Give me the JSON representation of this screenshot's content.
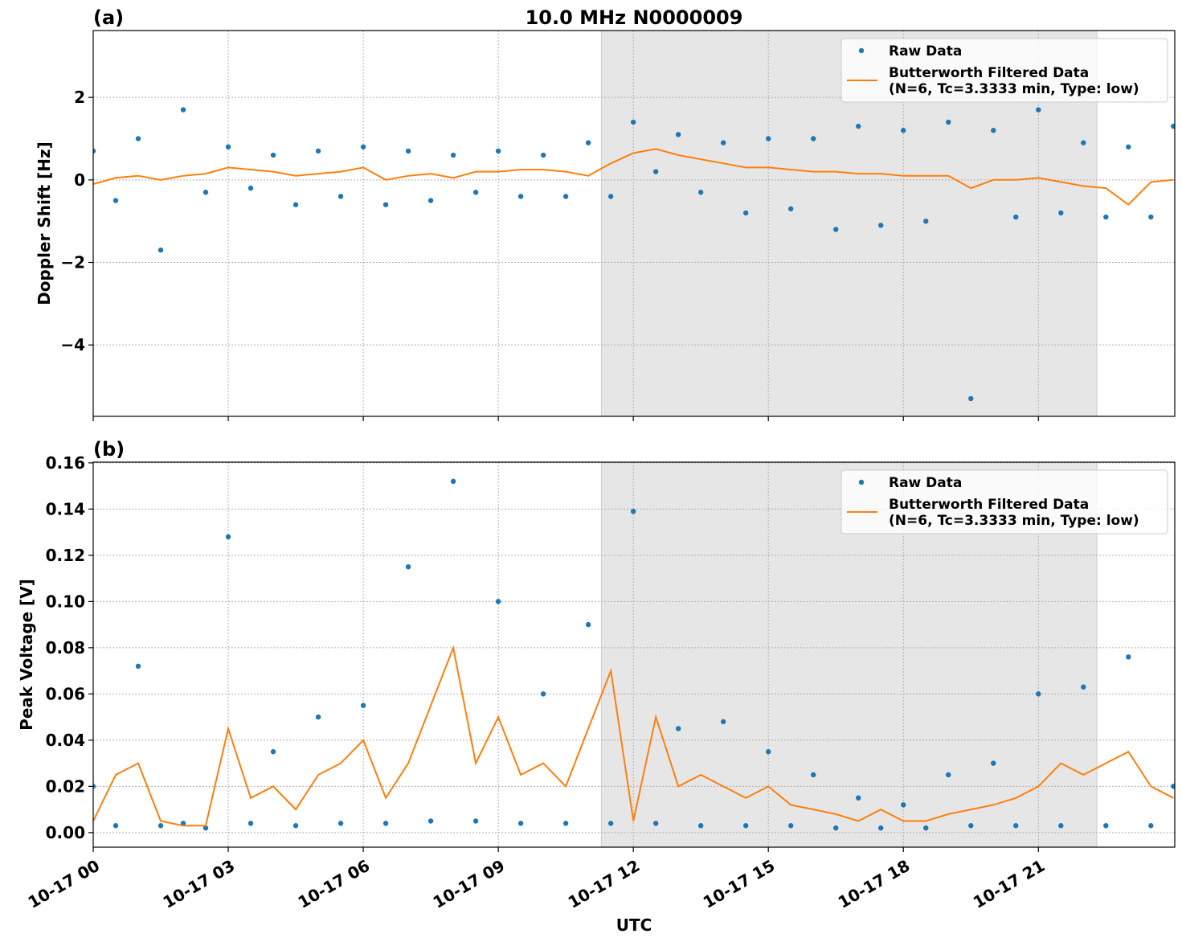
{
  "chart_data": [
    {
      "type": "line",
      "panel_label": "(a)",
      "title": "10.0 MHz N0000009",
      "ylabel": "Doppler Shift [Hz]",
      "xlim": [
        0,
        24.03
      ],
      "ylim": [
        -5.73,
        3.62
      ],
      "xticks": [
        0,
        3,
        6,
        9,
        12,
        15,
        18,
        21
      ],
      "yticks": [
        {
          "value": -4,
          "label": "−4"
        },
        {
          "value": -2,
          "label": "−2"
        },
        0,
        2
      ],
      "grid": true,
      "legend": "upper right",
      "shaded_span": [
        11.29,
        22.3
      ],
      "shade_color": "#e6e6e6",
      "series": [
        {
          "name": "Raw Data",
          "type": "scatter",
          "color": "#1f77b4",
          "x": [
            0,
            0.5,
            1,
            1.5,
            2,
            2.5,
            3,
            3.5,
            4,
            4.5,
            5,
            5.5,
            6,
            6.5,
            7,
            7.5,
            8,
            8.5,
            9,
            9.5,
            10,
            10.5,
            11,
            11.5,
            12,
            12.5,
            13,
            13.5,
            14,
            14.5,
            15,
            15.5,
            16,
            16.5,
            17,
            17.5,
            18,
            18.5,
            19,
            19.5,
            20,
            20.5,
            21,
            21.5,
            22,
            22.5,
            23,
            23.5,
            24
          ],
          "values": [
            0.7,
            -0.5,
            1.0,
            -1.7,
            1.7,
            -0.3,
            0.8,
            -0.2,
            0.6,
            -0.6,
            0.7,
            -0.4,
            0.8,
            -0.6,
            0.7,
            -0.5,
            0.6,
            -0.3,
            0.7,
            -0.4,
            0.6,
            -0.4,
            0.9,
            -0.4,
            1.4,
            0.2,
            1.1,
            -0.3,
            0.9,
            -0.8,
            1.0,
            -0.7,
            1.0,
            -1.2,
            1.3,
            -1.1,
            1.2,
            -1.0,
            1.4,
            -5.3,
            1.2,
            -0.9,
            1.7,
            -0.8,
            0.9,
            -0.9,
            0.8,
            -0.9,
            1.3
          ]
        },
        {
          "name": "Butterworth Filtered Data\n(N=6, Tc=3.3333 min, Type: low)",
          "type": "line",
          "color": "#ff7f0e",
          "x": [
            0,
            0.5,
            1,
            1.5,
            2,
            2.5,
            3,
            3.5,
            4,
            4.5,
            5,
            5.5,
            6,
            6.5,
            7,
            7.5,
            8,
            8.5,
            9,
            9.5,
            10,
            10.5,
            11,
            11.5,
            12,
            12.5,
            13,
            13.5,
            14,
            14.5,
            15,
            15.5,
            16,
            16.5,
            17,
            17.5,
            18,
            18.5,
            19,
            19.5,
            20,
            20.5,
            21,
            21.5,
            22,
            22.5,
            23,
            23.5,
            24
          ],
          "values": [
            -0.1,
            0.05,
            0.1,
            0.0,
            0.1,
            0.15,
            0.3,
            0.25,
            0.2,
            0.1,
            0.15,
            0.2,
            0.3,
            0.0,
            0.1,
            0.15,
            0.05,
            0.2,
            0.2,
            0.25,
            0.25,
            0.2,
            0.1,
            0.4,
            0.65,
            0.75,
            0.6,
            0.5,
            0.4,
            0.3,
            0.3,
            0.25,
            0.2,
            0.2,
            0.15,
            0.15,
            0.1,
            0.1,
            0.1,
            -0.2,
            0.0,
            0.0,
            0.05,
            -0.05,
            -0.15,
            -0.2,
            -0.6,
            -0.05,
            0.0
          ]
        }
      ]
    },
    {
      "type": "line",
      "panel_label": "(b)",
      "ylabel": "Peak Voltage [V]",
      "xlabel": "UTC",
      "xlim": [
        0,
        24.03
      ],
      "ylim": [
        -0.0063,
        0.1603
      ],
      "xticks": [
        {
          "value": 0,
          "label": "10-17 00"
        },
        {
          "value": 3,
          "label": "10-17 03"
        },
        {
          "value": 6,
          "label": "10-17 06"
        },
        {
          "value": 9,
          "label": "10-17 09"
        },
        {
          "value": 12,
          "label": "10-17 12"
        },
        {
          "value": 15,
          "label": "10-17 15"
        },
        {
          "value": 18,
          "label": "10-17 18"
        },
        {
          "value": 21,
          "label": "10-17 21"
        }
      ],
      "yticks": [
        {
          "value": 0,
          "label": "0.00"
        },
        {
          "value": 0.02,
          "label": "0.02"
        },
        {
          "value": 0.04,
          "label": "0.04"
        },
        {
          "value": 0.06,
          "label": "0.06"
        },
        {
          "value": 0.08,
          "label": "0.08"
        },
        {
          "value": 0.1,
          "label": "0.10"
        },
        {
          "value": 0.12,
          "label": "0.12"
        },
        {
          "value": 0.14,
          "label": "0.14"
        },
        {
          "value": 0.16,
          "label": "0.16"
        }
      ],
      "grid": true,
      "legend": "upper right",
      "shaded_span": [
        11.29,
        22.3
      ],
      "shade_color": "#e6e6e6",
      "series": [
        {
          "name": "Raw Data",
          "type": "scatter",
          "color": "#1f77b4",
          "x": [
            0,
            0.5,
            1,
            1.5,
            2,
            2.5,
            3,
            3.5,
            4,
            4.5,
            5,
            5.5,
            6,
            6.5,
            7,
            7.5,
            8,
            8.5,
            9,
            9.5,
            10,
            10.5,
            11,
            11.5,
            12,
            12.5,
            13,
            13.5,
            14,
            14.5,
            15,
            15.5,
            16,
            16.5,
            17,
            17.5,
            18,
            18.5,
            19,
            19.5,
            20,
            20.5,
            21,
            21.5,
            22,
            22.5,
            23,
            23.5,
            24
          ],
          "values": [
            0.02,
            0.003,
            0.072,
            0.003,
            0.004,
            0.002,
            0.128,
            0.004,
            0.035,
            0.003,
            0.05,
            0.004,
            0.055,
            0.004,
            0.115,
            0.005,
            0.152,
            0.005,
            0.1,
            0.004,
            0.06,
            0.004,
            0.09,
            0.004,
            0.139,
            0.004,
            0.045,
            0.003,
            0.048,
            0.003,
            0.035,
            0.003,
            0.025,
            0.002,
            0.015,
            0.002,
            0.012,
            0.002,
            0.025,
            0.003,
            0.03,
            0.003,
            0.06,
            0.003,
            0.063,
            0.003,
            0.076,
            0.003,
            0.02
          ]
        },
        {
          "name": "Butterworth Filtered Data\n(N=6, Tc=3.3333 min, Type: low)",
          "type": "line",
          "color": "#ff7f0e",
          "x": [
            0,
            0.5,
            1,
            1.5,
            2,
            2.5,
            3,
            3.5,
            4,
            4.5,
            5,
            5.5,
            6,
            6.5,
            7,
            7.5,
            8,
            8.5,
            9,
            9.5,
            10,
            10.5,
            11,
            11.5,
            12,
            12.5,
            13,
            13.5,
            14,
            14.5,
            15,
            15.5,
            16,
            16.5,
            17,
            17.5,
            18,
            18.5,
            19,
            19.5,
            20,
            20.5,
            21,
            21.5,
            22,
            22.5,
            23,
            23.5,
            24
          ],
          "values": [
            0.005,
            0.025,
            0.03,
            0.005,
            0.003,
            0.003,
            0.045,
            0.015,
            0.02,
            0.01,
            0.025,
            0.03,
            0.04,
            0.015,
            0.03,
            0.055,
            0.08,
            0.03,
            0.05,
            0.025,
            0.03,
            0.02,
            0.045,
            0.07,
            0.005,
            0.05,
            0.02,
            0.025,
            0.02,
            0.015,
            0.02,
            0.012,
            0.01,
            0.008,
            0.005,
            0.01,
            0.005,
            0.005,
            0.008,
            0.01,
            0.012,
            0.015,
            0.02,
            0.03,
            0.025,
            0.03,
            0.035,
            0.02,
            0.015
          ]
        }
      ]
    }
  ]
}
